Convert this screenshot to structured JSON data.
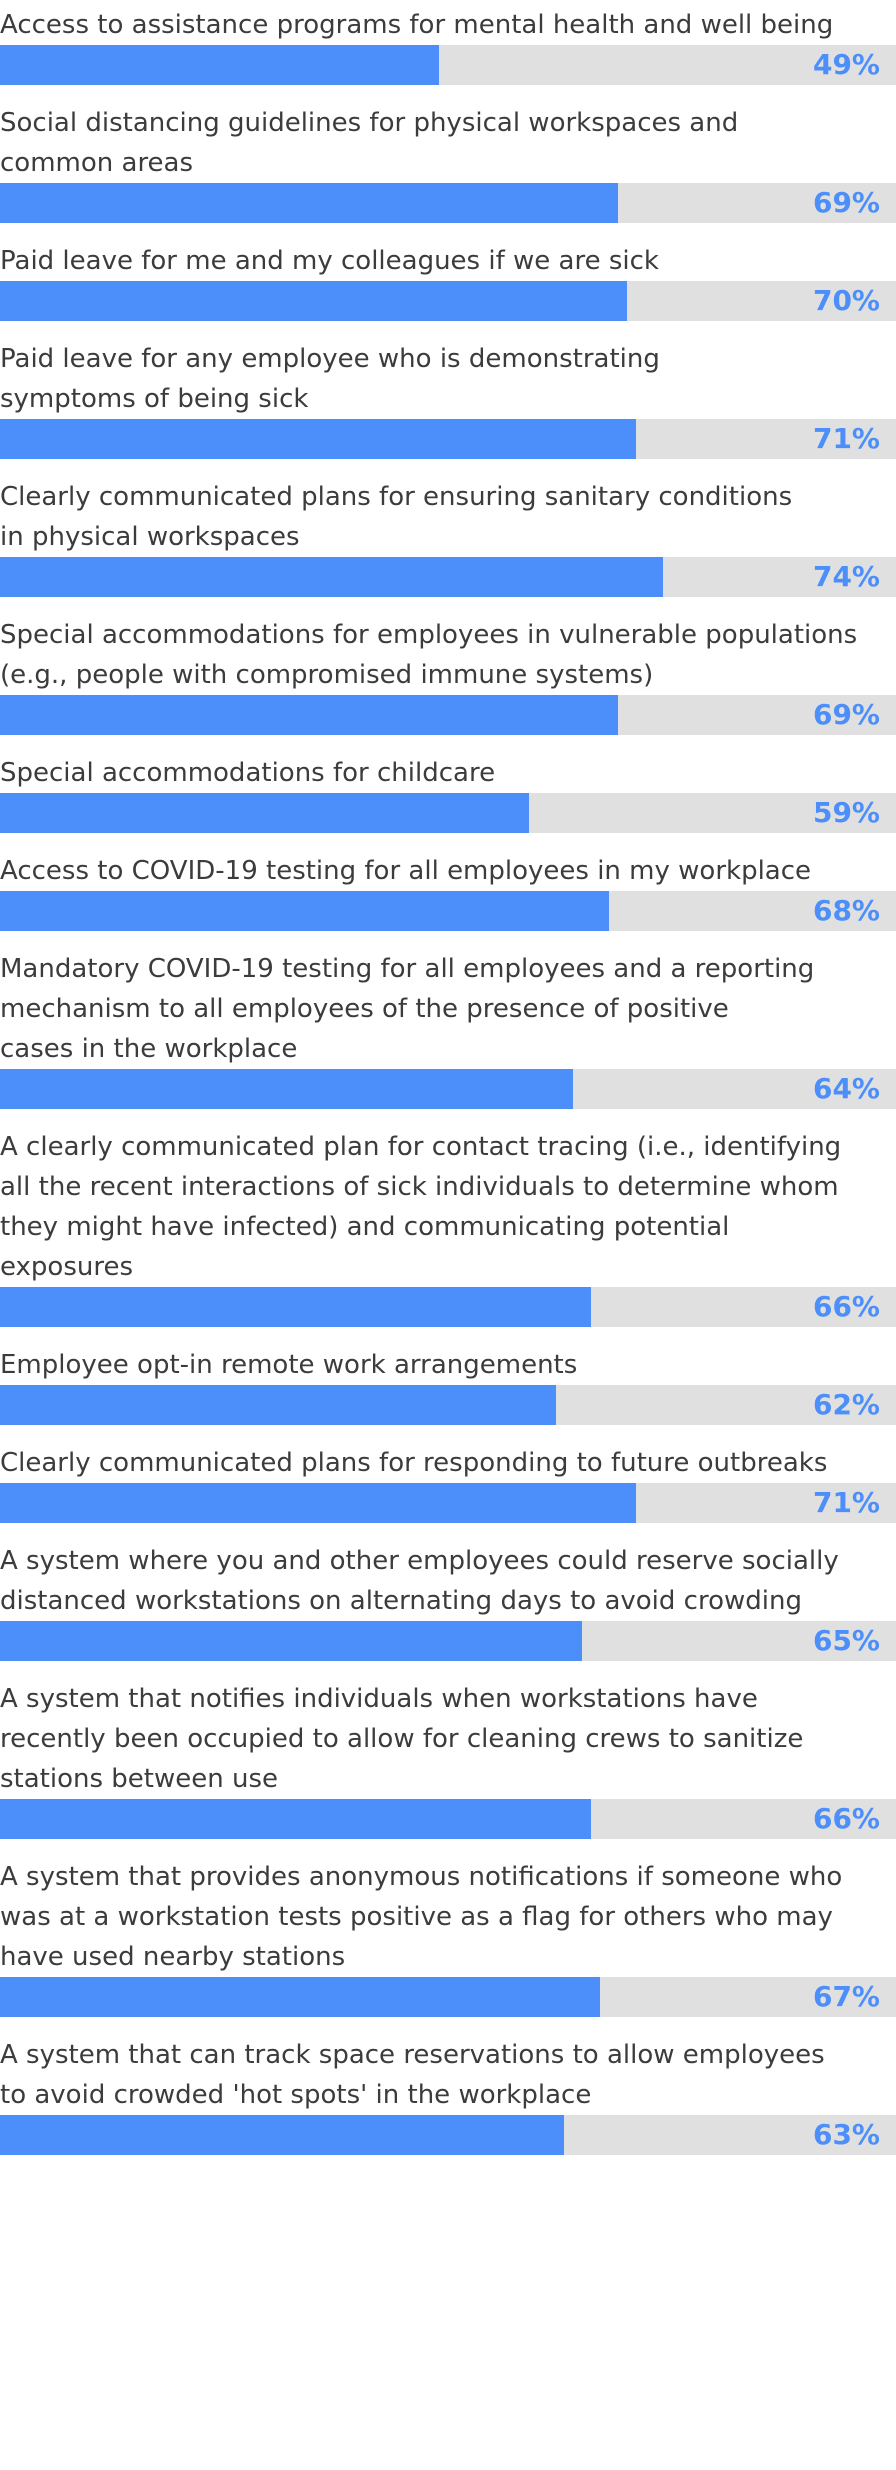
{
  "colors": {
    "bar": "#4c8ffa",
    "track": "#e0e0e0",
    "label_text": "#3c3c3c",
    "value_text": "#4c8ffa"
  },
  "chart_data": {
    "type": "bar",
    "orientation": "horizontal",
    "value_format": "percent",
    "xlim": [
      0,
      100
    ],
    "grid": false,
    "categories": [
      "Access to assistance programs for mental health and well being",
      "Social distancing guidelines for physical workspaces and\ncommon areas",
      "Paid leave for me and my colleagues if we are sick",
      "Paid leave for any employee who is demonstrating\nsymptoms of being sick",
      "Clearly communicated plans for ensuring sanitary conditions\nin physical workspaces",
      "Special accommodations for employees in vulnerable populations\n(e.g., people with compromised immune systems)",
      "Special accommodations for childcare",
      "Access to COVID-19 testing for all employees in my workplace",
      "Mandatory COVID-19 testing for all employees and a reporting\nmechanism to all employees of the presence of positive\ncases in the workplace",
      "A clearly communicated plan for contact tracing (i.e., identifying\nall the recent interactions of sick individuals to determine whom\nthey might have infected) and communicating potential exposures\nto effected employees",
      "Employee opt-in remote work arrangements",
      "Clearly communicated plans for responding to future outbreaks",
      "A system where you and other employees could reserve socially\ndistanced workstations on alternating days to avoid crowding",
      "A system that notifies individuals when workstations have\nrecently been occupied to allow for cleaning crews to sanitize\nstations between use",
      "A system that provides anonymous notifications if someone who\nwas at a workstation tests positive as a flag for others who may\nhave used nearby stations",
      "A system that can track space reservations to allow employees\nto avoid crowded 'hot spots' in the workplace"
    ],
    "values": [
      49,
      69,
      70,
      71,
      74,
      69,
      59,
      68,
      64,
      66,
      62,
      71,
      65,
      66,
      67,
      63
    ],
    "value_labels": [
      "49%",
      "69%",
      "70%",
      "71%",
      "74%",
      "69%",
      "59%",
      "68%",
      "64%",
      "66%",
      "62%",
      "71%",
      "65%",
      "66%",
      "67%",
      "63%"
    ]
  }
}
